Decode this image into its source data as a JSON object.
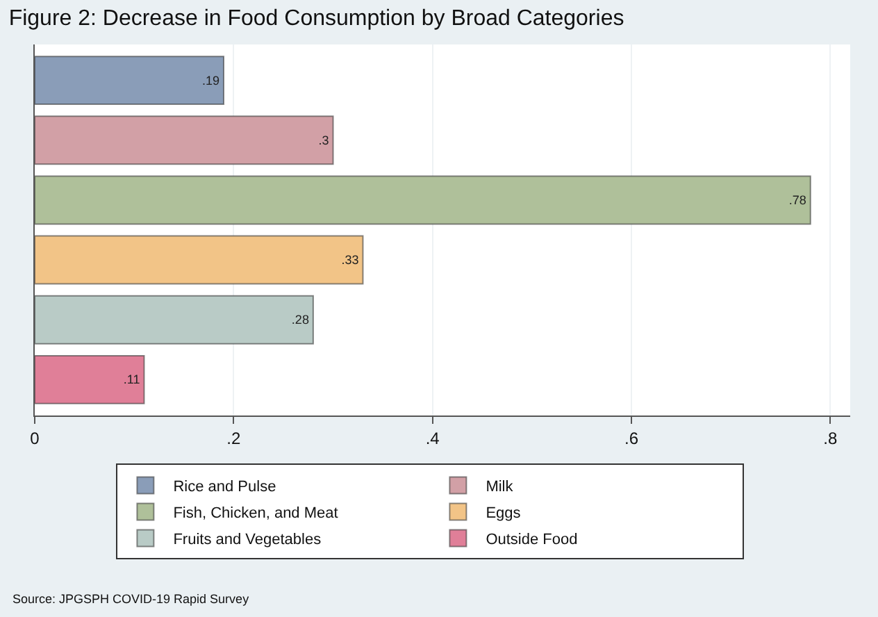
{
  "chart_data": {
    "type": "bar",
    "orientation": "horizontal",
    "title": "Figure 2: Decrease in Food Consumption by Broad Categories",
    "categories": [
      null,
      null,
      null,
      null,
      null,
      null
    ],
    "series": [
      {
        "name": "Rice and Pulse",
        "color": "#8a9db8",
        "values": [
          0.19,
          null,
          null,
          null,
          null,
          null
        ],
        "value_labels": [
          ".19",
          null,
          null,
          null,
          null,
          null
        ]
      },
      {
        "name": "Milk",
        "color": "#d2a0a6",
        "values": [
          null,
          0.3,
          null,
          null,
          null,
          null
        ],
        "value_labels": [
          null,
          ".3",
          null,
          null,
          null,
          null
        ]
      },
      {
        "name": "Fish, Chicken, and Meat",
        "color": "#afc09a",
        "values": [
          null,
          null,
          0.78,
          null,
          null,
          null
        ],
        "value_labels": [
          null,
          null,
          ".78",
          null,
          null,
          null
        ]
      },
      {
        "name": "Eggs",
        "color": "#f2c487",
        "values": [
          null,
          null,
          null,
          0.33,
          null,
          null
        ],
        "value_labels": [
          null,
          null,
          null,
          ".33",
          null,
          null
        ]
      },
      {
        "name": "Fruits and Vegetables",
        "color": "#b9cbc6",
        "values": [
          null,
          null,
          null,
          null,
          0.28,
          null
        ],
        "value_labels": [
          null,
          null,
          null,
          null,
          ".28",
          null
        ]
      },
      {
        "name": "Outside Food",
        "color": "#e07f98",
        "values": [
          null,
          null,
          null,
          null,
          null,
          0.11
        ],
        "value_labels": [
          null,
          null,
          null,
          null,
          null,
          ".11"
        ]
      }
    ],
    "xlim": [
      0,
      0.82
    ],
    "xticks": [
      0,
      {
        "value": 0.2,
        "label": ".2"
      },
      {
        "value": 0.4,
        "label": ".4"
      },
      {
        "value": 0.6,
        "label": ".6"
      },
      {
        "value": 0.8,
        "label": ".8"
      }
    ],
    "grid": "x",
    "legend": "bottom",
    "tick_labels": "x",
    "annotations": [
      "Source: JPGSPH COVID-19 Rapid Survey"
    ]
  }
}
